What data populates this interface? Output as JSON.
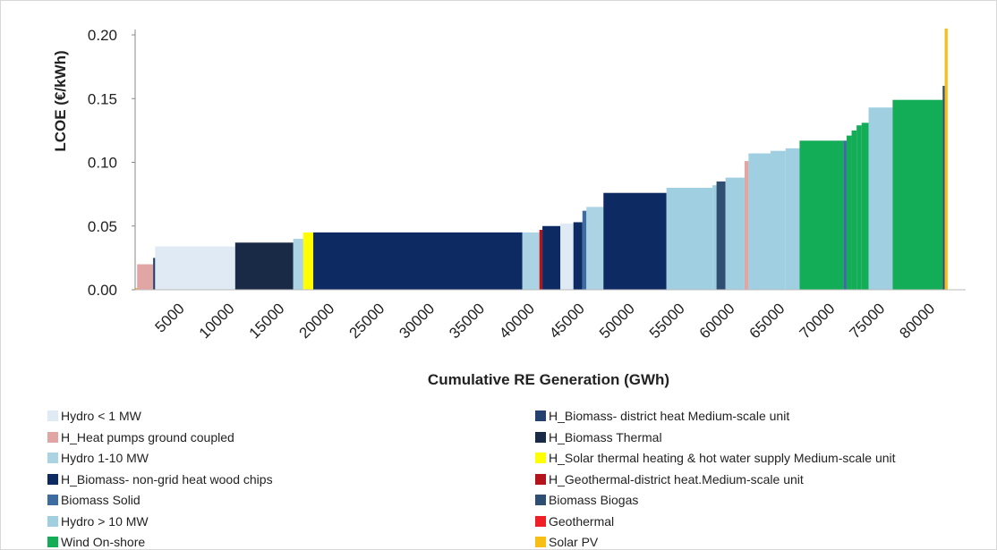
{
  "chart_data": {
    "type": "bar",
    "variant": "stepped-area supply curve",
    "xlabel": "Cumulative RE Generation (GWh)",
    "ylabel": "LCOE (€/kWh)",
    "xlim": [
      0,
      83000
    ],
    "ylim": [
      0,
      0.2
    ],
    "xticks": [
      5000,
      10000,
      15000,
      20000,
      25000,
      30000,
      35000,
      40000,
      45000,
      50000,
      55000,
      60000,
      65000,
      70000,
      75000,
      80000
    ],
    "yticks": [
      {
        "value": 0.0,
        "label": "0.00"
      },
      {
        "value": 0.05,
        "label": "0.05"
      },
      {
        "value": 0.1,
        "label": "0.10"
      },
      {
        "value": 0.15,
        "label": "0.15"
      },
      {
        "value": 0.2,
        "label": "0.20"
      }
    ],
    "grid": false,
    "legend_position": "bottom",
    "legend_columns": [
      [
        {
          "name": "Hydro < 1 MW",
          "color": "#dfeaf5"
        },
        {
          "name": "H_Heat pumps ground coupled",
          "color": "#e1a5a3"
        },
        {
          "name": "Hydro 1-10 MW",
          "color": "#abd3e3"
        },
        {
          "name": "H_Biomass- non-grid heat wood chips",
          "color": "#0e2a63"
        },
        {
          "name": "Biomass Solid",
          "color": "#3c6ca2"
        },
        {
          "name": "Hydro > 10 MW",
          "color": "#9fcfe0"
        },
        {
          "name": "Wind On-shore",
          "color": "#14ad57"
        }
      ],
      [
        {
          "name": "H_Biomass- district heat Medium-scale unit",
          "color": "#23406e"
        },
        {
          "name": "H_Biomass Thermal",
          "color": "#182a45"
        },
        {
          "name": "H_Solar thermal heating & hot water supply Medium-scale unit",
          "color": "#ffff00"
        },
        {
          "name": "H_Geothermal-district heat.Medium-scale unit",
          "color": "#b3141c"
        },
        {
          "name": "Biomass Biogas",
          "color": "#2e4e72"
        },
        {
          "name": "Geothermal",
          "color": "#ee2026"
        },
        {
          "name": "Solar PV",
          "color": "#f7be16"
        }
      ]
    ],
    "segments": [
      {
        "series": "Solar PV",
        "x0": 0,
        "x1": 1800,
        "y": 0.001
      },
      {
        "series": "H_Heat pumps ground coupled",
        "x0": 200,
        "x1": 1800,
        "y": 0.02
      },
      {
        "series": "H_Biomass- district heat Medium-scale unit",
        "x0": 1800,
        "x1": 2000,
        "y": 0.025
      },
      {
        "series": "Hydro < 1 MW",
        "x0": 2000,
        "x1": 10000,
        "y": 0.034
      },
      {
        "series": "H_Biomass Thermal",
        "x0": 10000,
        "x1": 15800,
        "y": 0.037
      },
      {
        "series": "Hydro 1-10 MW",
        "x0": 15800,
        "x1": 16800,
        "y": 0.04
      },
      {
        "series": "H_Solar thermal heating & hot water supply Medium-scale unit",
        "x0": 16800,
        "x1": 17800,
        "y": 0.045
      },
      {
        "series": "H_Biomass- non-grid heat wood chips",
        "x0": 17800,
        "x1": 38700,
        "y": 0.045
      },
      {
        "series": "Hydro 1-10 MW",
        "x0": 38700,
        "x1": 40400,
        "y": 0.045
      },
      {
        "series": "H_Geothermal-district heat.Medium-scale unit",
        "x0": 40400,
        "x1": 40700,
        "y": 0.047
      },
      {
        "series": "H_Biomass- non-grid heat wood chips",
        "x0": 40700,
        "x1": 42500,
        "y": 0.05
      },
      {
        "series": "Hydro < 1 MW",
        "x0": 42500,
        "x1": 43800,
        "y": 0.052
      },
      {
        "series": "H_Biomass- non-grid heat wood chips",
        "x0": 43800,
        "x1": 44700,
        "y": 0.053
      },
      {
        "series": "Biomass Solid",
        "x0": 44700,
        "x1": 45100,
        "y": 0.062
      },
      {
        "series": "Hydro 1-10 MW",
        "x0": 45100,
        "x1": 46800,
        "y": 0.065
      },
      {
        "series": "H_Biomass- non-grid heat wood chips",
        "x0": 46800,
        "x1": 53100,
        "y": 0.076
      },
      {
        "series": "Hydro > 10 MW",
        "x0": 53100,
        "x1": 57700,
        "y": 0.08
      },
      {
        "series": "Hydro > 10 MW",
        "x0": 57700,
        "x1": 58100,
        "y": 0.082
      },
      {
        "series": "Biomass Biogas",
        "x0": 58100,
        "x1": 59000,
        "y": 0.085
      },
      {
        "series": "Hydro > 10 MW",
        "x0": 59000,
        "x1": 60900,
        "y": 0.088
      },
      {
        "series": "H_Heat pumps ground coupled",
        "x0": 60900,
        "x1": 61300,
        "y": 0.101
      },
      {
        "series": "Hydro > 10 MW",
        "x0": 61300,
        "x1": 63500,
        "y": 0.107
      },
      {
        "series": "Hydro > 10 MW",
        "x0": 63500,
        "x1": 65000,
        "y": 0.109
      },
      {
        "series": "Hydro > 10 MW",
        "x0": 65000,
        "x1": 66400,
        "y": 0.111
      },
      {
        "series": "Wind On-shore",
        "x0": 66400,
        "x1": 70800,
        "y": 0.117
      },
      {
        "series": "Biomass Solid",
        "x0": 70800,
        "x1": 71100,
        "y": 0.117
      },
      {
        "series": "Wind On-shore",
        "x0": 71100,
        "x1": 71600,
        "y": 0.121
      },
      {
        "series": "Wind On-shore",
        "x0": 71600,
        "x1": 72100,
        "y": 0.125
      },
      {
        "series": "Wind On-shore",
        "x0": 72100,
        "x1": 72600,
        "y": 0.129
      },
      {
        "series": "Wind On-shore",
        "x0": 72600,
        "x1": 73300,
        "y": 0.131
      },
      {
        "series": "Hydro > 10 MW",
        "x0": 73300,
        "x1": 75700,
        "y": 0.143
      },
      {
        "series": "Wind On-shore",
        "x0": 75700,
        "x1": 80700,
        "y": 0.149
      },
      {
        "series": "Biomass Biogas",
        "x0": 80700,
        "x1": 80900,
        "y": 0.16
      },
      {
        "series": "Solar PV",
        "x0": 80900,
        "x1": 81200,
        "y": 0.205
      }
    ]
  }
}
